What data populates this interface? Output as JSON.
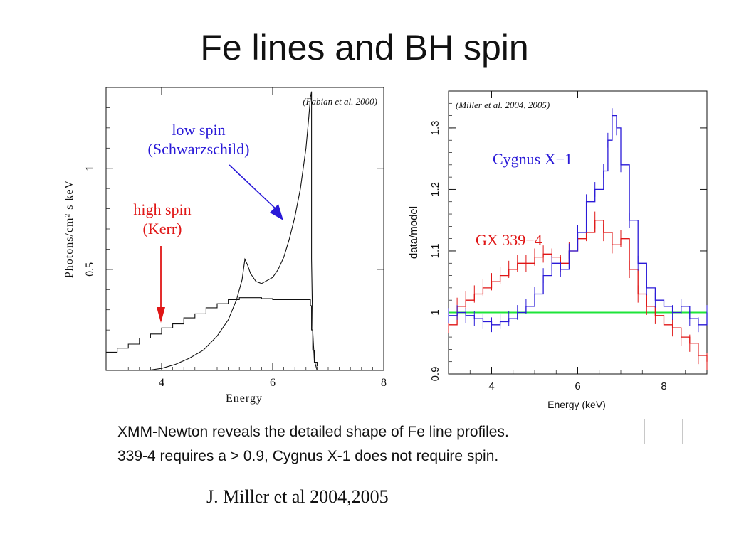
{
  "slide": {
    "title": "Fe lines and BH spin",
    "caption_line1": "XMM-Newton reveals the detailed shape of Fe line profiles.",
    "caption_line2": "339-4 requires a > 0.9, Cygnus X-1 does not require spin.",
    "credit": "J. Miller et al 2004,2005"
  },
  "colors": {
    "blue": "#2a1ad8",
    "red": "#e01616",
    "green": "#1ee43a",
    "black": "#111111"
  },
  "chart_data": [
    {
      "type": "line",
      "source": "(Fabian et al. 2000)",
      "xlabel": "Energy",
      "ylabel": "Photons/cm² s keV",
      "xlim": [
        3,
        8
      ],
      "ylim": [
        0,
        1.4
      ],
      "xticks": [
        4,
        6,
        8
      ],
      "yticks": [
        0.5,
        1
      ],
      "annotations": [
        {
          "text": "low spin",
          "color": "#2a1ad8"
        },
        {
          "text": "(Schwarzschild)",
          "color": "#2a1ad8"
        },
        {
          "text": "high spin",
          "color": "#e01616"
        },
        {
          "text": "(Kerr)",
          "color": "#e01616"
        }
      ],
      "series": [
        {
          "color": "#111111",
          "x": [
            3.0,
            3.2,
            3.4,
            3.6,
            3.8,
            4.0,
            4.2,
            4.4,
            4.6,
            4.8,
            5.0,
            5.2,
            5.4,
            5.6,
            5.8,
            6.0,
            6.2,
            6.4,
            6.5,
            6.6,
            6.62,
            6.65,
            6.68,
            6.7,
            6.72,
            6.75,
            6.8
          ],
          "y": [
            0.09,
            0.11,
            0.13,
            0.16,
            0.18,
            0.21,
            0.23,
            0.26,
            0.28,
            0.31,
            0.33,
            0.35,
            0.36,
            0.36,
            0.355,
            0.35,
            0.35,
            0.35,
            0.35,
            0.35,
            0.35,
            0.35,
            0.32,
            0.2,
            0.1,
            0.04,
            0.02
          ]
        },
        {
          "color": "#111111",
          "x": [
            3.75,
            4.0,
            4.25,
            4.5,
            4.75,
            5.0,
            5.2,
            5.35,
            5.45,
            5.5,
            5.55,
            5.6,
            5.7,
            5.8,
            6.0,
            6.1,
            6.2,
            6.3,
            6.4,
            6.5,
            6.55,
            6.6,
            6.65,
            6.68,
            6.7,
            6.7,
            6.72,
            6.75,
            6.8
          ],
          "y": [
            0.0,
            0.01,
            0.03,
            0.06,
            0.1,
            0.17,
            0.25,
            0.35,
            0.45,
            0.55,
            0.52,
            0.48,
            0.44,
            0.43,
            0.46,
            0.5,
            0.56,
            0.65,
            0.76,
            0.9,
            1.0,
            1.1,
            1.25,
            1.35,
            1.38,
            0.55,
            0.2,
            0.05,
            0.0
          ]
        }
      ]
    },
    {
      "type": "line",
      "source": "(Miller et al. 2004, 2005)",
      "xlabel": "Energy (keV)",
      "ylabel": "data/model",
      "xlim": [
        3,
        9
      ],
      "ylim": [
        0.9,
        1.36
      ],
      "xticks": [
        4,
        6,
        8
      ],
      "yticks": [
        0.9,
        1,
        1.1,
        1.2,
        1.3
      ],
      "reference_line": 1.0,
      "series": [
        {
          "name": "Cygnus X−1",
          "color": "#2a1ad8",
          "x": [
            3.0,
            3.2,
            3.4,
            3.6,
            3.8,
            4.0,
            4.2,
            4.4,
            4.6,
            4.8,
            5.0,
            5.2,
            5.4,
            5.6,
            5.8,
            6.0,
            6.2,
            6.4,
            6.6,
            6.7,
            6.8,
            6.9,
            7.0,
            7.2,
            7.4,
            7.6,
            7.8,
            8.0,
            8.2,
            8.4,
            8.6,
            8.8,
            9.0
          ],
          "y": [
            0.995,
            1.0,
            0.995,
            0.99,
            0.985,
            0.98,
            0.985,
            0.99,
            1.0,
            1.01,
            1.03,
            1.06,
            1.08,
            1.07,
            1.1,
            1.13,
            1.18,
            1.2,
            1.23,
            1.28,
            1.32,
            1.3,
            1.24,
            1.15,
            1.08,
            1.04,
            1.02,
            1.01,
            1.0,
            1.01,
            0.99,
            0.98,
            1.0
          ]
        },
        {
          "name": "GX 339−4",
          "color": "#e01616",
          "x": [
            3.0,
            3.2,
            3.4,
            3.6,
            3.8,
            4.0,
            4.2,
            4.4,
            4.6,
            4.8,
            5.0,
            5.2,
            5.4,
            5.6,
            5.8,
            6.0,
            6.2,
            6.4,
            6.6,
            6.8,
            7.0,
            7.2,
            7.4,
            7.6,
            7.8,
            8.0,
            8.2,
            8.4,
            8.6,
            8.8,
            9.0
          ],
          "y": [
            0.98,
            1.01,
            1.02,
            1.03,
            1.04,
            1.05,
            1.06,
            1.07,
            1.08,
            1.08,
            1.09,
            1.095,
            1.09,
            1.08,
            1.1,
            1.12,
            1.13,
            1.15,
            1.13,
            1.11,
            1.12,
            1.07,
            1.03,
            1.01,
            0.995,
            0.98,
            0.975,
            0.96,
            0.95,
            0.93,
            0.92
          ]
        }
      ]
    }
  ]
}
